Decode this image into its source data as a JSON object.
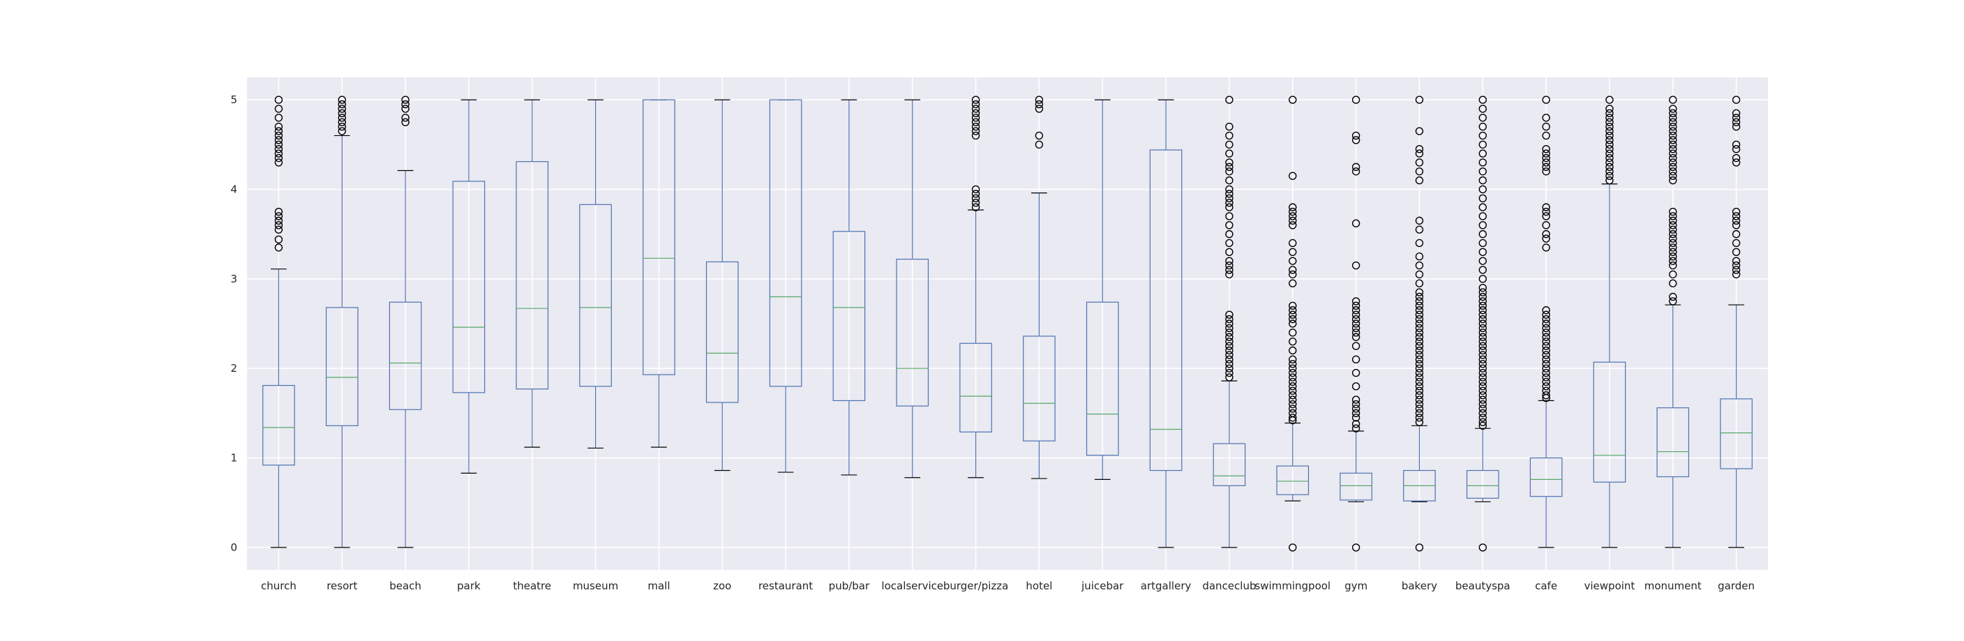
{
  "chart_data": {
    "type": "box",
    "title": "",
    "xlabel": "",
    "ylabel": "",
    "ylim": [
      -0.25,
      5.25
    ],
    "yticks": [
      "0",
      "1",
      "2",
      "3",
      "4",
      "5"
    ],
    "grid": true,
    "colors": {
      "background": "#eaeaf2",
      "grid": "#ffffff",
      "box": "#4c72b0",
      "median": "#55a868",
      "whisker": "#4c72b0",
      "cap": "#000000",
      "flier": "#000000"
    },
    "categories": [
      "church",
      "resort",
      "beach",
      "park",
      "theatre",
      "museum",
      "mall",
      "zoo",
      "restaurant",
      "pub/bar",
      "localservice",
      "burger/pizza",
      "hotel",
      "juicebar",
      "artgallery",
      "danceclub",
      "swimmingpool",
      "gym",
      "bakery",
      "beautyspa",
      "cafe",
      "viewpoint",
      "monument",
      "garden"
    ],
    "boxes": [
      {
        "whislo": 0.0,
        "q1": 0.92,
        "med": 1.34,
        "q3": 1.81,
        "whishi": 3.11,
        "fliers": [
          3.35,
          3.44,
          3.55,
          3.6,
          3.65,
          3.7,
          3.75,
          4.3,
          4.35,
          4.4,
          4.45,
          4.5,
          4.55,
          4.6,
          4.65,
          4.7,
          4.8,
          4.9,
          5.0
        ]
      },
      {
        "whislo": 0.0,
        "q1": 1.36,
        "med": 1.9,
        "q3": 2.68,
        "whishi": 4.6,
        "fliers": [
          4.65,
          4.7,
          4.75,
          4.8,
          4.85,
          4.9,
          4.95,
          5.0
        ]
      },
      {
        "whislo": 0.0,
        "q1": 1.54,
        "med": 2.06,
        "q3": 2.74,
        "whishi": 4.21,
        "fliers": [
          4.75,
          4.8,
          4.9,
          4.95,
          5.0
        ]
      },
      {
        "whislo": 0.83,
        "q1": 1.73,
        "med": 2.46,
        "q3": 4.09,
        "whishi": 5.0,
        "fliers": []
      },
      {
        "whislo": 1.12,
        "q1": 1.77,
        "med": 2.67,
        "q3": 4.31,
        "whishi": 5.0,
        "fliers": []
      },
      {
        "whislo": 1.11,
        "q1": 1.8,
        "med": 2.68,
        "q3": 3.83,
        "whishi": 5.0,
        "fliers": []
      },
      {
        "whislo": 1.12,
        "q1": 1.93,
        "med": 3.23,
        "q3": 5.0,
        "whishi": 5.0,
        "fliers": []
      },
      {
        "whislo": 0.86,
        "q1": 1.62,
        "med": 2.17,
        "q3": 3.19,
        "whishi": 5.0,
        "fliers": []
      },
      {
        "whislo": 0.84,
        "q1": 1.8,
        "med": 2.8,
        "q3": 5.0,
        "whishi": 5.0,
        "fliers": []
      },
      {
        "whislo": 0.81,
        "q1": 1.64,
        "med": 2.68,
        "q3": 3.53,
        "whishi": 5.0,
        "fliers": []
      },
      {
        "whislo": 0.78,
        "q1": 1.58,
        "med": 2.0,
        "q3": 3.22,
        "whishi": 5.0,
        "fliers": []
      },
      {
        "whislo": 0.78,
        "q1": 1.29,
        "med": 1.69,
        "q3": 2.28,
        "whishi": 3.77,
        "fliers": [
          3.8,
          3.85,
          3.9,
          3.95,
          4.0,
          4.6,
          4.65,
          4.7,
          4.75,
          4.8,
          4.85,
          4.9,
          4.95,
          5.0
        ]
      },
      {
        "whislo": 0.77,
        "q1": 1.19,
        "med": 1.61,
        "q3": 2.36,
        "whishi": 3.96,
        "fliers": [
          4.5,
          4.6,
          4.9,
          4.95,
          5.0
        ]
      },
      {
        "whislo": 0.76,
        "q1": 1.03,
        "med": 1.49,
        "q3": 2.74,
        "whishi": 5.0,
        "fliers": []
      },
      {
        "whislo": 0.0,
        "q1": 0.86,
        "med": 1.32,
        "q3": 4.44,
        "whishi": 5.0,
        "fliers": []
      },
      {
        "whislo": 0.0,
        "q1": 0.69,
        "med": 0.8,
        "q3": 1.16,
        "whishi": 1.86,
        "fliers": [
          1.9,
          1.95,
          2.0,
          2.05,
          2.1,
          2.15,
          2.2,
          2.25,
          2.3,
          2.35,
          2.4,
          2.45,
          2.5,
          2.55,
          2.6,
          3.05,
          3.1,
          3.15,
          3.2,
          3.3,
          3.4,
          3.5,
          3.6,
          3.7,
          3.8,
          3.85,
          3.9,
          3.95,
          4.0,
          4.1,
          4.2,
          4.25,
          4.3,
          4.4,
          4.5,
          4.6,
          4.7,
          5.0
        ]
      },
      {
        "whislo": 0.52,
        "q1": 0.59,
        "med": 0.74,
        "q3": 0.91,
        "whishi": 1.39,
        "fliers": [
          0.0,
          1.42,
          1.45,
          1.5,
          1.55,
          1.6,
          1.65,
          1.7,
          1.75,
          1.8,
          1.85,
          1.9,
          1.95,
          2.0,
          2.05,
          2.1,
          2.2,
          2.3,
          2.4,
          2.5,
          2.55,
          2.6,
          2.65,
          2.7,
          2.95,
          3.05,
          3.1,
          3.2,
          3.3,
          3.4,
          3.6,
          3.65,
          3.7,
          3.75,
          3.8,
          4.15,
          5.0
        ]
      },
      {
        "whislo": 0.51,
        "q1": 0.53,
        "med": 0.69,
        "q3": 0.83,
        "whishi": 1.3,
        "fliers": [
          0.0,
          1.33,
          1.38,
          1.45,
          1.5,
          1.55,
          1.6,
          1.65,
          1.8,
          1.95,
          2.1,
          2.25,
          2.35,
          2.4,
          2.45,
          2.5,
          2.55,
          2.6,
          2.65,
          2.7,
          2.75,
          3.15,
          3.62,
          4.2,
          4.25,
          4.55,
          4.6,
          5.0
        ]
      },
      {
        "whislo": 0.51,
        "q1": 0.52,
        "med": 0.69,
        "q3": 0.86,
        "whishi": 1.36,
        "fliers": [
          0.0,
          1.4,
          1.45,
          1.5,
          1.55,
          1.6,
          1.65,
          1.7,
          1.75,
          1.8,
          1.85,
          1.9,
          1.95,
          2.0,
          2.05,
          2.1,
          2.15,
          2.2,
          2.25,
          2.3,
          2.35,
          2.4,
          2.45,
          2.5,
          2.55,
          2.6,
          2.65,
          2.7,
          2.75,
          2.8,
          2.85,
          2.95,
          3.05,
          3.15,
          3.25,
          3.4,
          3.55,
          3.65,
          4.1,
          4.2,
          4.3,
          4.4,
          4.45,
          4.65,
          5.0
        ]
      },
      {
        "whislo": 0.51,
        "q1": 0.55,
        "med": 0.69,
        "q3": 0.86,
        "whishi": 1.33,
        "fliers": [
          0.0,
          1.36,
          1.4,
          1.45,
          1.5,
          1.55,
          1.6,
          1.65,
          1.7,
          1.75,
          1.8,
          1.85,
          1.9,
          1.95,
          2.0,
          2.05,
          2.1,
          2.15,
          2.2,
          2.25,
          2.3,
          2.35,
          2.4,
          2.45,
          2.5,
          2.55,
          2.6,
          2.65,
          2.7,
          2.75,
          2.8,
          2.85,
          2.9,
          3.0,
          3.1,
          3.2,
          3.3,
          3.4,
          3.5,
          3.6,
          3.7,
          3.8,
          3.9,
          4.0,
          4.1,
          4.2,
          4.3,
          4.4,
          4.5,
          4.6,
          4.7,
          4.8,
          4.9,
          5.0
        ]
      },
      {
        "whislo": 0.0,
        "q1": 0.57,
        "med": 0.76,
        "q3": 1.0,
        "whishi": 1.64,
        "fliers": [
          1.67,
          1.7,
          1.75,
          1.8,
          1.85,
          1.9,
          1.95,
          2.0,
          2.05,
          2.1,
          2.15,
          2.2,
          2.25,
          2.3,
          2.35,
          2.4,
          2.45,
          2.5,
          2.55,
          2.6,
          2.65,
          3.35,
          3.45,
          3.5,
          3.6,
          3.7,
          3.75,
          3.8,
          4.2,
          4.25,
          4.3,
          4.35,
          4.4,
          4.45,
          4.6,
          4.7,
          4.8,
          5.0
        ]
      },
      {
        "whislo": 0.0,
        "q1": 0.73,
        "med": 1.03,
        "q3": 2.07,
        "whishi": 4.06,
        "fliers": [
          4.1,
          4.15,
          4.2,
          4.25,
          4.3,
          4.35,
          4.4,
          4.45,
          4.5,
          4.55,
          4.6,
          4.65,
          4.7,
          4.75,
          4.8,
          4.85,
          4.9,
          5.0
        ]
      },
      {
        "whislo": 0.0,
        "q1": 0.79,
        "med": 1.07,
        "q3": 1.56,
        "whishi": 2.71,
        "fliers": [
          2.75,
          2.8,
          2.95,
          3.05,
          3.15,
          3.2,
          3.25,
          3.3,
          3.35,
          3.4,
          3.45,
          3.5,
          3.55,
          3.6,
          3.65,
          3.7,
          3.75,
          4.1,
          4.15,
          4.2,
          4.25,
          4.3,
          4.35,
          4.4,
          4.45,
          4.5,
          4.55,
          4.6,
          4.65,
          4.7,
          4.75,
          4.8,
          4.85,
          4.9,
          5.0
        ]
      },
      {
        "whislo": 0.0,
        "q1": 0.88,
        "med": 1.28,
        "q3": 1.66,
        "whishi": 2.71,
        "fliers": [
          3.05,
          3.1,
          3.15,
          3.2,
          3.3,
          3.4,
          3.5,
          3.6,
          3.65,
          3.7,
          3.75,
          4.3,
          4.35,
          4.45,
          4.5,
          4.7,
          4.75,
          4.8,
          4.85,
          5.0
        ]
      }
    ]
  }
}
